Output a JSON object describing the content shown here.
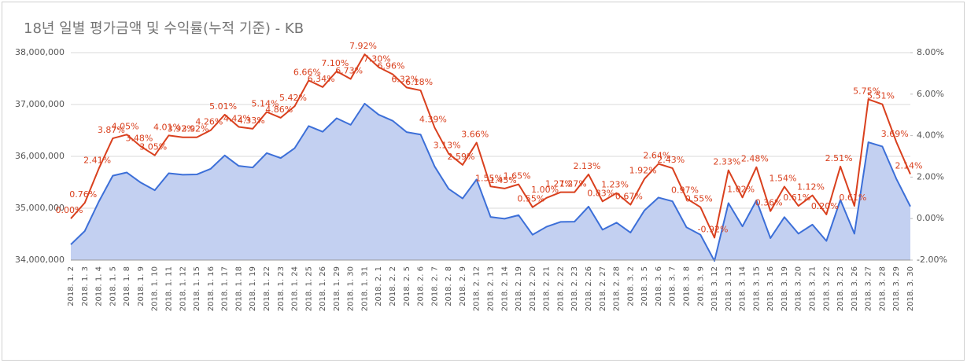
{
  "chart_data": {
    "type": "line",
    "title": "18년 일별 평가금액 및 수익률(누적 기준) - KB",
    "categories": [
      "2018. 1. 2",
      "2018. 1. 3",
      "2018. 1. 4",
      "2018. 1. 5",
      "2018. 1. 8",
      "2018. 1. 9",
      "2018. 1. 10",
      "2018. 1. 11",
      "2018. 1. 12",
      "2018. 1. 15",
      "2018. 1. 16",
      "2018. 1. 17",
      "2018. 1. 18",
      "2018. 1. 19",
      "2018. 1. 22",
      "2018. 1. 23",
      "2018. 1. 24",
      "2018. 1. 25",
      "2018. 1. 26",
      "2018. 1. 29",
      "2018. 1. 30",
      "2018. 1. 31",
      "2018. 2. 1",
      "2018. 2. 2",
      "2018. 2. 5",
      "2018. 2. 6",
      "2018. 2. 7",
      "2018. 2. 8",
      "2018. 2. 9",
      "2018. 2. 12",
      "2018. 2. 13",
      "2018. 2. 14",
      "2018. 2. 19",
      "2018. 2. 20",
      "2018. 2. 21",
      "2018. 2. 22",
      "2018. 2. 23",
      "2018. 2. 26",
      "2018. 2. 27",
      "2018. 2. 28",
      "2018. 3. 2",
      "2018. 3. 5",
      "2018. 3. 6",
      "2018. 3. 7",
      "2018. 3. 8",
      "2018. 3. 9",
      "2018. 3. 12",
      "2018. 3. 13",
      "2018. 3. 14",
      "2018. 3. 15",
      "2018. 3. 16",
      "2018. 3. 19",
      "2018. 3. 20",
      "2018. 3. 21",
      "2018. 3. 22",
      "2018. 3. 23",
      "2018. 3. 26",
      "2018. 3. 27",
      "2018. 3. 28",
      "2018. 3. 29",
      "2018. 3. 30"
    ],
    "series": [
      {
        "color": "#3c6fd8",
        "fill": "#c3d0f1",
        "axis": "y",
        "values": [
          34300000,
          34561000,
          35127000,
          35627000,
          35689000,
          35494000,
          35346000,
          35675000,
          35645000,
          35651000,
          35761000,
          36018000,
          35816000,
          35785000,
          36063000,
          35967000,
          36159000,
          36584000,
          36475000,
          36735000,
          36608000,
          37017000,
          36804000,
          36687000,
          36468000,
          36420000,
          35806000,
          35374000,
          35188000,
          35555000,
          34832000,
          34797000,
          34866000,
          34489000,
          34643000,
          34736000,
          34741000,
          35031000,
          34585000,
          34722000,
          34530000,
          34959000,
          35206000,
          35133000,
          34633000,
          34489000,
          33984000,
          35099000,
          34650000,
          35151000,
          34423000,
          34828000,
          34509000,
          34684000,
          34369000,
          35161000,
          34509000,
          36272000,
          36190000,
          35566000,
          35034000
        ]
      },
      {
        "color": "#d9401e",
        "axis": "y2",
        "values": [
          0.0,
          0.76,
          2.41,
          3.87,
          4.05,
          3.48,
          3.05,
          4.01,
          3.92,
          3.92,
          4.26,
          5.01,
          4.42,
          4.33,
          5.14,
          4.86,
          5.42,
          6.66,
          6.34,
          7.1,
          6.73,
          7.92,
          7.3,
          6.96,
          6.32,
          6.18,
          4.39,
          3.13,
          2.59,
          3.66,
          1.55,
          1.45,
          1.65,
          0.55,
          1.0,
          1.27,
          1.27,
          2.13,
          0.83,
          1.23,
          0.67,
          1.92,
          2.64,
          2.43,
          0.97,
          0.55,
          -0.92,
          2.33,
          1.02,
          2.48,
          0.36,
          1.54,
          0.61,
          1.12,
          0.2,
          2.51,
          0.61,
          5.75,
          5.51,
          3.69,
          2.14
        ],
        "value_labels": [
          "0.00%",
          "0.76%",
          "2.41%",
          "3.87%",
          "4.05%",
          "3.48%",
          "3.05%",
          "4.01%",
          "3.92%",
          "3.92%",
          "4.26%",
          "5.01%",
          "4.42%",
          "4.33%",
          "5.14%",
          "4.86%",
          "5.42%",
          "6.66%",
          "6.34%",
          "7.10%",
          "6.73%",
          "7.92%",
          "7.30%",
          "6.96%",
          "6.32%",
          "6.18%",
          "4.39%",
          "3.13%",
          "2.59%",
          "3.66%",
          "1.55%",
          "1.45%",
          "1.65%",
          "0.55%",
          "1.00%",
          "1.27%",
          "1.27%",
          "2.13%",
          "0.83%",
          "1.23%",
          "0.67%",
          "1.92%",
          "2.64%",
          "2.43%",
          "0.97%",
          "0.55%",
          "-0.92%",
          "2.33%",
          "1.02%",
          "2.48%",
          "0.36%",
          "1.54%",
          "0.61%",
          "1.12%",
          "0.20%",
          "2.51%",
          "0.61%",
          "5.75%",
          "5.51%",
          "3.69%",
          "2.14%"
        ]
      }
    ],
    "ylim": [
      34000000,
      38000000
    ],
    "yticks": [
      {
        "value": 34000000,
        "label": "34,000,000"
      },
      {
        "value": 35000000,
        "label": "35,000,000"
      },
      {
        "value": 36000000,
        "label": "36,000,000"
      },
      {
        "value": 37000000,
        "label": "37,000,000"
      },
      {
        "value": 38000000,
        "label": "38,000,000"
      }
    ],
    "y2lim": [
      -2,
      8
    ],
    "y2ticks": [
      {
        "value": -2,
        "label": "-2.00%"
      },
      {
        "value": 0,
        "label": "0.00%"
      },
      {
        "value": 2,
        "label": "2.00%"
      },
      {
        "value": 4,
        "label": "4.00%"
      },
      {
        "value": 6,
        "label": "6.00%"
      },
      {
        "value": 8,
        "label": "8.00%"
      }
    ],
    "grid": true
  }
}
